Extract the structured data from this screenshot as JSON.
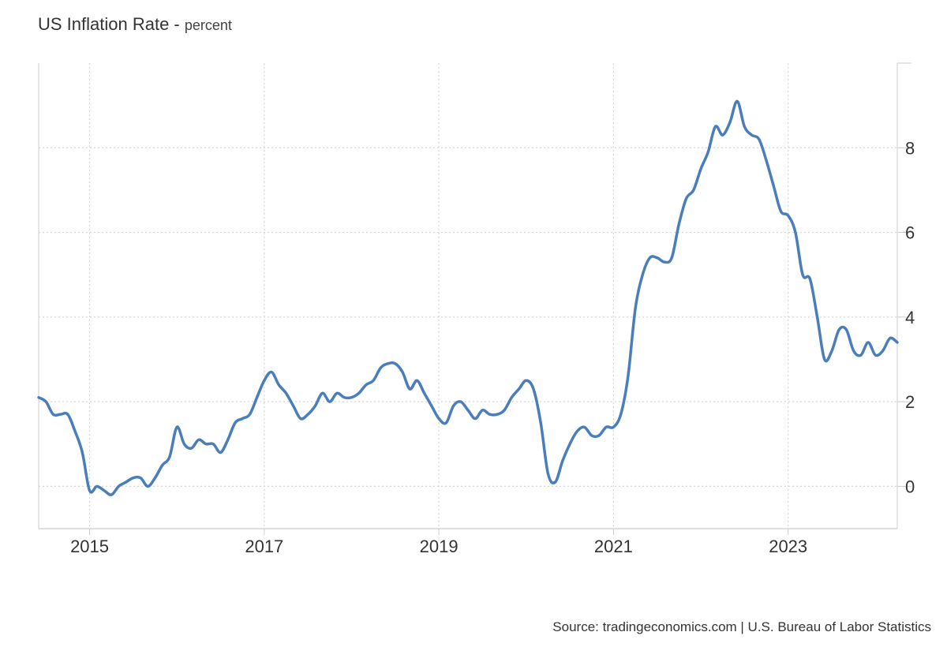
{
  "title": "US Inflation Rate",
  "subtitle": "percent",
  "source": "Source: tradingeconomics.com | U.S. Bureau of Labor Statistics",
  "colors": {
    "line": "#4a7ebb",
    "grid": "#d6d6d6",
    "axis": "#cccccc"
  },
  "chart_data": {
    "type": "line",
    "title": "US Inflation Rate",
    "subtitle": "percent",
    "xlabel": "",
    "ylabel": "",
    "xlim": [
      "2014-06",
      "2024-04"
    ],
    "ylim": [
      -1,
      10
    ],
    "x_ticks": [
      "2015",
      "2017",
      "2019",
      "2021",
      "2023"
    ],
    "y_ticks": [
      0,
      2,
      4,
      6,
      8
    ],
    "y_axis_position": "right",
    "grid": true,
    "legend": "none",
    "series": [
      {
        "name": "",
        "x": [
          "2014-06",
          "2014-07",
          "2014-08",
          "2014-09",
          "2014-10",
          "2014-11",
          "2014-12",
          "2015-01",
          "2015-02",
          "2015-03",
          "2015-04",
          "2015-05",
          "2015-06",
          "2015-07",
          "2015-08",
          "2015-09",
          "2015-10",
          "2015-11",
          "2015-12",
          "2016-01",
          "2016-02",
          "2016-03",
          "2016-04",
          "2016-05",
          "2016-06",
          "2016-07",
          "2016-08",
          "2016-09",
          "2016-10",
          "2016-11",
          "2016-12",
          "2017-01",
          "2017-02",
          "2017-03",
          "2017-04",
          "2017-05",
          "2017-06",
          "2017-07",
          "2017-08",
          "2017-09",
          "2017-10",
          "2017-11",
          "2017-12",
          "2018-01",
          "2018-02",
          "2018-03",
          "2018-04",
          "2018-05",
          "2018-06",
          "2018-07",
          "2018-08",
          "2018-09",
          "2018-10",
          "2018-11",
          "2018-12",
          "2019-01",
          "2019-02",
          "2019-03",
          "2019-04",
          "2019-05",
          "2019-06",
          "2019-07",
          "2019-08",
          "2019-09",
          "2019-10",
          "2019-11",
          "2019-12",
          "2020-01",
          "2020-02",
          "2020-03",
          "2020-04",
          "2020-05",
          "2020-06",
          "2020-07",
          "2020-08",
          "2020-09",
          "2020-10",
          "2020-11",
          "2020-12",
          "2021-01",
          "2021-02",
          "2021-03",
          "2021-04",
          "2021-05",
          "2021-06",
          "2021-07",
          "2021-08",
          "2021-09",
          "2021-10",
          "2021-11",
          "2021-12",
          "2022-01",
          "2022-02",
          "2022-03",
          "2022-04",
          "2022-05",
          "2022-06",
          "2022-07",
          "2022-08",
          "2022-09",
          "2022-10",
          "2022-11",
          "2022-12",
          "2023-01",
          "2023-02",
          "2023-03",
          "2023-04",
          "2023-05",
          "2023-06",
          "2023-07",
          "2023-08",
          "2023-09",
          "2023-10",
          "2023-11",
          "2023-12",
          "2024-01",
          "2024-02",
          "2024-03",
          "2024-04"
        ],
        "values": [
          2.1,
          2.0,
          1.7,
          1.7,
          1.7,
          1.3,
          0.8,
          -0.1,
          0.0,
          -0.1,
          -0.2,
          0.0,
          0.1,
          0.2,
          0.2,
          0.0,
          0.2,
          0.5,
          0.7,
          1.4,
          1.0,
          0.9,
          1.1,
          1.0,
          1.0,
          0.8,
          1.1,
          1.5,
          1.6,
          1.7,
          2.1,
          2.5,
          2.7,
          2.4,
          2.2,
          1.9,
          1.6,
          1.7,
          1.9,
          2.2,
          2.0,
          2.2,
          2.1,
          2.1,
          2.2,
          2.4,
          2.5,
          2.8,
          2.9,
          2.9,
          2.7,
          2.3,
          2.5,
          2.2,
          1.9,
          1.6,
          1.5,
          1.9,
          2.0,
          1.8,
          1.6,
          1.8,
          1.7,
          1.7,
          1.8,
          2.1,
          2.3,
          2.5,
          2.3,
          1.5,
          0.3,
          0.1,
          0.6,
          1.0,
          1.3,
          1.4,
          1.2,
          1.2,
          1.4,
          1.4,
          1.7,
          2.6,
          4.2,
          5.0,
          5.4,
          5.4,
          5.3,
          5.4,
          6.2,
          6.8,
          7.0,
          7.5,
          7.9,
          8.5,
          8.3,
          8.6,
          9.1,
          8.5,
          8.3,
          8.2,
          7.7,
          7.1,
          6.5,
          6.4,
          6.0,
          5.0,
          4.9,
          4.0,
          3.0,
          3.2,
          3.7,
          3.7,
          3.2,
          3.1,
          3.4,
          3.1,
          3.2,
          3.5,
          3.4
        ]
      }
    ]
  }
}
